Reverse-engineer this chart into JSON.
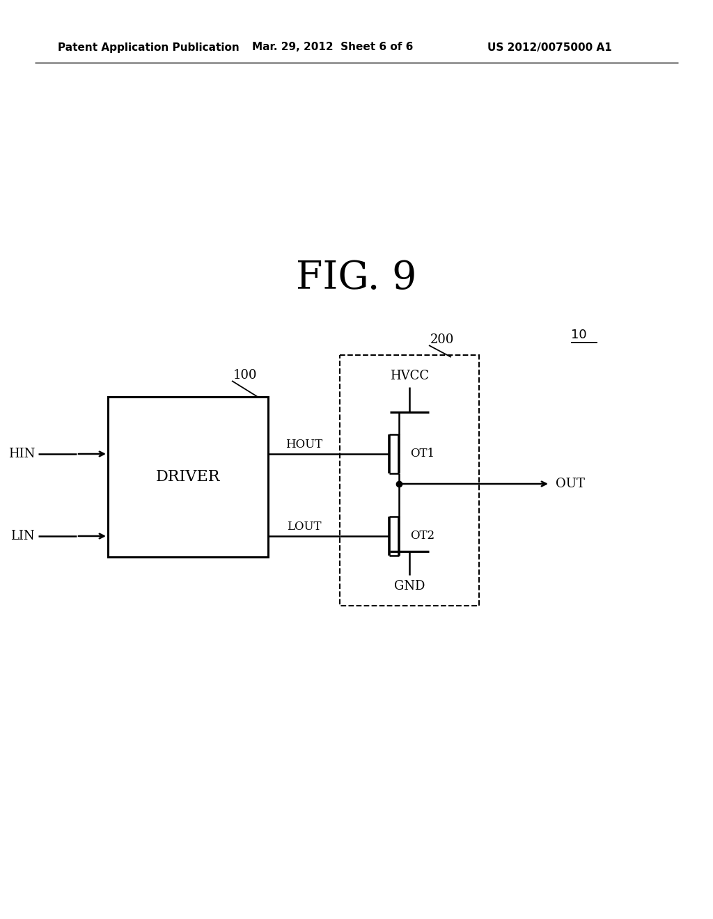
{
  "title": "FIG. 9",
  "title_fontsize": 36,
  "header_left": "Patent Application Publication",
  "header_center": "Mar. 29, 2012  Sheet 6 of 6",
  "header_right": "US 2012/0075000 A1",
  "header_fontsize": 11,
  "bg_color": "#ffffff",
  "line_color": "#000000",
  "label_10": "10",
  "label_100": "100",
  "label_200": "200",
  "label_driver": "DRIVER",
  "label_hin": "HIN",
  "label_lin": "LIN",
  "label_hout": "HOUT",
  "label_lout": "LOUT",
  "label_hvcc": "HVCC",
  "label_gnd": "GND",
  "label_ot1": "OT1",
  "label_ot2": "OT2",
  "label_out": "OUT"
}
